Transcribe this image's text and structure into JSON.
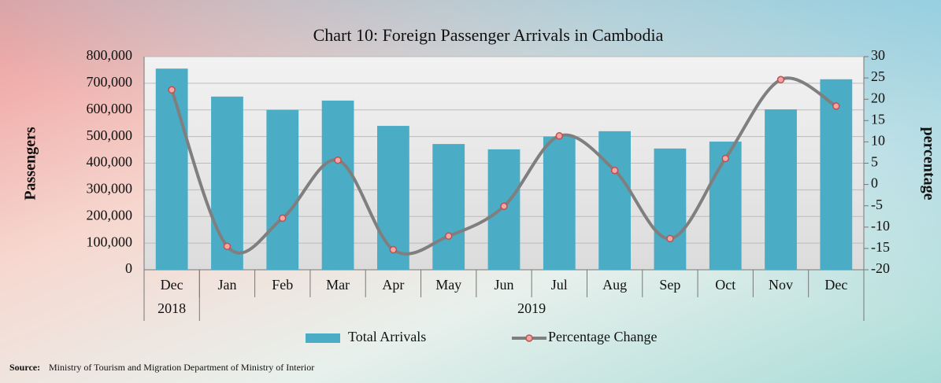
{
  "chart_data": {
    "type": "bar_line",
    "title": "Chart 10: Foreign Passenger Arrivals in Cambodia",
    "y_label": "Passengers",
    "y2_label": "percentage",
    "categories": [
      "Dec",
      "Jan",
      "Feb",
      "Mar",
      "Apr",
      "May",
      "Jun",
      "Jul",
      "Aug",
      "Sep",
      "Oct",
      "Nov",
      "Dec"
    ],
    "groups": [
      {
        "label": "2018",
        "count": 1
      },
      {
        "label": "2019",
        "count": 12
      }
    ],
    "series": [
      {
        "name": "Total Arrivals",
        "type": "bar",
        "color": "#4bacc6",
        "values": [
          755000,
          650000,
          600000,
          635000,
          540000,
          472000,
          452000,
          500000,
          520000,
          455000,
          481000,
          602000,
          715000
        ]
      },
      {
        "name": "Percentage Change",
        "type": "line",
        "axis": "y2",
        "color": "#7f7f7f",
        "marker_color": "#f4a6a6",
        "marker_edge": "#c0504d",
        "values": [
          22.2,
          -14.5,
          -7.9,
          5.7,
          -15.3,
          -12.1,
          -5.1,
          11.4,
          3.3,
          -12.7,
          6.1,
          24.6,
          18.4
        ]
      }
    ],
    "ylim": [
      0,
      800000
    ],
    "yticks": [
      0,
      {
        "value": 100000,
        "label": "100,000"
      },
      {
        "value": 200000,
        "label": "200,000"
      },
      {
        "value": 300000,
        "label": "300,000"
      },
      {
        "value": 400000,
        "label": "400,000"
      },
      {
        "value": 500000,
        "label": "500,000"
      },
      {
        "value": 600000,
        "label": "600,000"
      },
      {
        "value": 700000,
        "label": "700,000"
      },
      {
        "value": 800000,
        "label": "800,000"
      }
    ],
    "y2lim": [
      -20,
      30
    ],
    "y2ticks": [
      -20,
      -15,
      -10,
      -5,
      0,
      5,
      10,
      15,
      20,
      25,
      30
    ],
    "grid": true,
    "legend": "bottom",
    "source_label": "Source:",
    "source_text": "Ministry of Tourism and Migration Department of Ministry of Interior"
  }
}
